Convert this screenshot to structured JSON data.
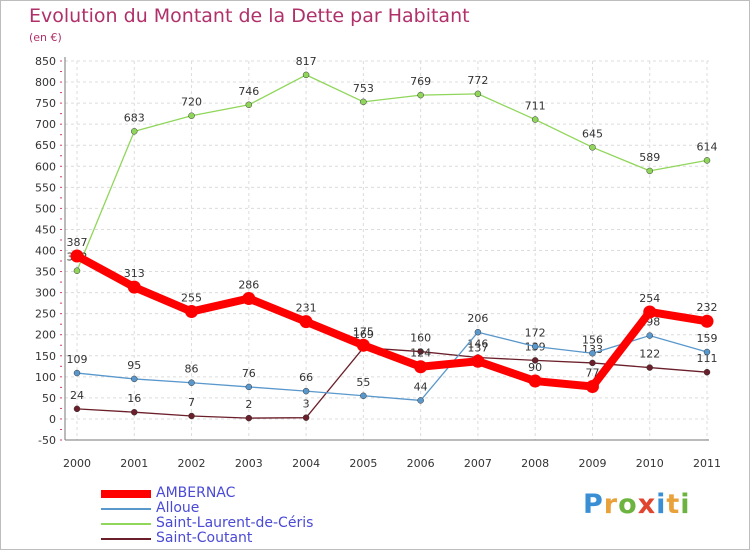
{
  "title": "Evolution du Montant de la Dette par Habitant",
  "subtitle": "(en €)",
  "logo": [
    "P",
    "r",
    "o",
    "x",
    "i",
    "t",
    "i"
  ],
  "logo_colors": [
    "#3a8fd4",
    "#e9a23b",
    "#6cb33f",
    "#e0452f",
    "#3a8fd4",
    "#e9a23b",
    "#6cb33f"
  ],
  "chart_data": {
    "type": "line",
    "x": [
      "2000",
      "2001",
      "2002",
      "2003",
      "2004",
      "2005",
      "2006",
      "2007",
      "2008",
      "2009",
      "2010",
      "2011"
    ],
    "ylim": [
      -50,
      850
    ],
    "yticks": [
      -50,
      0,
      50,
      100,
      150,
      200,
      250,
      300,
      350,
      400,
      450,
      500,
      550,
      600,
      650,
      700,
      750,
      800,
      850
    ],
    "grid": true,
    "legend": "bottom-left",
    "series": [
      {
        "name": "Saint-Coutant",
        "color": "#6b1f2a",
        "values": [
          24,
          16,
          7,
          2,
          3,
          169,
          160,
          146,
          139,
          133,
          122,
          111
        ],
        "labels": [
          "24",
          "16",
          "7",
          "2",
          "3",
          "169",
          "160",
          "146",
          "139",
          "133",
          "122",
          "111"
        ]
      },
      {
        "name": "Saint-Laurent-de-Céris",
        "color": "#8fd65a",
        "values": [
          352,
          683,
          720,
          746,
          817,
          753,
          769,
          772,
          711,
          645,
          589,
          614
        ],
        "labels": [
          "352",
          "683",
          "720",
          "746",
          "817",
          "753",
          "769",
          "772",
          "711",
          "645",
          "589",
          "614"
        ]
      },
      {
        "name": "Alloue",
        "color": "#5a98cc",
        "values": [
          109,
          95,
          86,
          76,
          66,
          55,
          44,
          206,
          172,
          156,
          198,
          159
        ],
        "labels": [
          "109",
          "95",
          "86",
          "76",
          "66",
          "55",
          "44",
          "206",
          "172",
          "156",
          "198",
          "159"
        ]
      },
      {
        "name": "AMBERNAC",
        "color": "#ff0000",
        "values": [
          387,
          313,
          255,
          286,
          231,
          175,
          124,
          137,
          90,
          77,
          254,
          232
        ],
        "labels": [
          "387",
          "313",
          "255",
          "286",
          "231",
          "175",
          "124",
          "137",
          "90",
          "77",
          "254",
          "232"
        ]
      }
    ],
    "legend_order": [
      "AMBERNAC",
      "Alloue",
      "Saint-Laurent-de-Céris",
      "Saint-Coutant"
    ]
  }
}
